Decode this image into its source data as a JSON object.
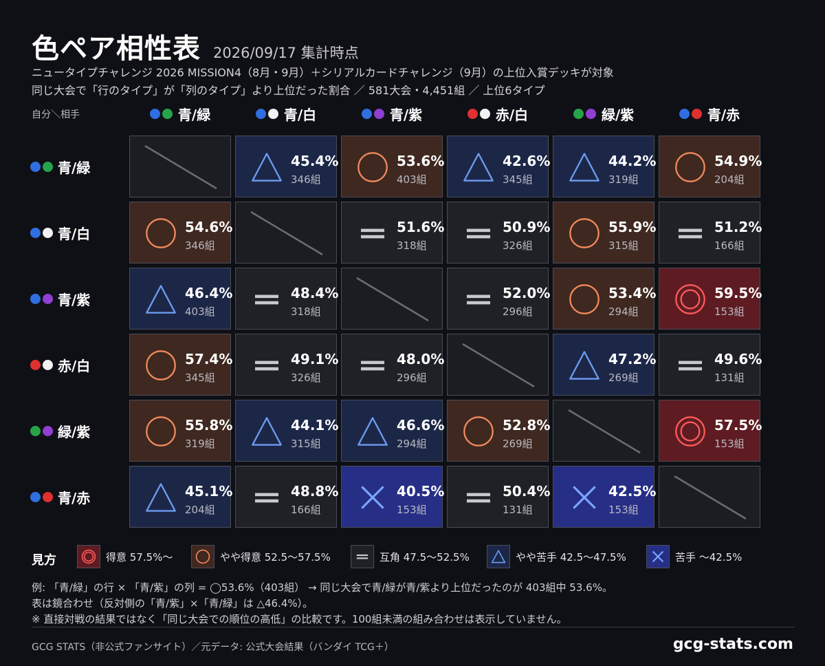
{
  "header": {
    "title": "色ペア相性表",
    "date": "2026/09/17 集計時点",
    "subtitle1": "ニュータイプチャレンジ 2026 MISSION4（8月・9月）＋シリアルカードチャレンジ（9月）の上位入賞デッキが対象",
    "subtitle2": "同じ大会で「行のタイプ」が「列のタイプ」より上位だった割合 ／ 581大会・4,451組 ／ 上位6タイプ",
    "corner": "自分＼相手"
  },
  "colors": {
    "blue": "#2f6fe0",
    "green": "#27a34a",
    "white": "#f2f2f2",
    "purple": "#8f3fd1",
    "red": "#e03030"
  },
  "types": [
    {
      "label": "青/緑",
      "dots": [
        "blue",
        "green"
      ]
    },
    {
      "label": "青/白",
      "dots": [
        "blue",
        "white"
      ]
    },
    {
      "label": "青/紫",
      "dots": [
        "blue",
        "purple"
      ]
    },
    {
      "label": "赤/白",
      "dots": [
        "red",
        "white"
      ]
    },
    {
      "label": "緑/紫",
      "dots": [
        "green",
        "purple"
      ]
    },
    {
      "label": "青/赤",
      "dots": [
        "blue",
        "red"
      ]
    }
  ],
  "matrix": [
    [
      null,
      {
        "pct": "45.4%",
        "count": "346組",
        "rank": "slightly_bad"
      },
      {
        "pct": "53.6%",
        "count": "403組",
        "rank": "slightly_good"
      },
      {
        "pct": "42.6%",
        "count": "345組",
        "rank": "slightly_bad"
      },
      {
        "pct": "44.2%",
        "count": "319組",
        "rank": "slightly_bad"
      },
      {
        "pct": "54.9%",
        "count": "204組",
        "rank": "slightly_good"
      }
    ],
    [
      {
        "pct": "54.6%",
        "count": "346組",
        "rank": "slightly_good"
      },
      null,
      {
        "pct": "51.6%",
        "count": "318組",
        "rank": "even"
      },
      {
        "pct": "50.9%",
        "count": "326組",
        "rank": "even"
      },
      {
        "pct": "55.9%",
        "count": "315組",
        "rank": "slightly_good"
      },
      {
        "pct": "51.2%",
        "count": "166組",
        "rank": "even"
      }
    ],
    [
      {
        "pct": "46.4%",
        "count": "403組",
        "rank": "slightly_bad"
      },
      {
        "pct": "48.4%",
        "count": "318組",
        "rank": "even"
      },
      null,
      {
        "pct": "52.0%",
        "count": "296組",
        "rank": "even"
      },
      {
        "pct": "53.4%",
        "count": "294組",
        "rank": "slightly_good"
      },
      {
        "pct": "59.5%",
        "count": "153組",
        "rank": "good"
      }
    ],
    [
      {
        "pct": "57.4%",
        "count": "345組",
        "rank": "slightly_good"
      },
      {
        "pct": "49.1%",
        "count": "326組",
        "rank": "even"
      },
      {
        "pct": "48.0%",
        "count": "296組",
        "rank": "even"
      },
      null,
      {
        "pct": "47.2%",
        "count": "269組",
        "rank": "slightly_bad"
      },
      {
        "pct": "49.6%",
        "count": "131組",
        "rank": "even"
      }
    ],
    [
      {
        "pct": "55.8%",
        "count": "319組",
        "rank": "slightly_good"
      },
      {
        "pct": "44.1%",
        "count": "315組",
        "rank": "slightly_bad"
      },
      {
        "pct": "46.6%",
        "count": "294組",
        "rank": "slightly_bad"
      },
      {
        "pct": "52.8%",
        "count": "269組",
        "rank": "slightly_good"
      },
      null,
      {
        "pct": "57.5%",
        "count": "153組",
        "rank": "good"
      }
    ],
    [
      {
        "pct": "45.1%",
        "count": "204組",
        "rank": "slightly_bad"
      },
      {
        "pct": "48.8%",
        "count": "166組",
        "rank": "even"
      },
      {
        "pct": "40.5%",
        "count": "153組",
        "rank": "bad"
      },
      {
        "pct": "50.4%",
        "count": "131組",
        "rank": "even"
      },
      {
        "pct": "42.5%",
        "count": "153組",
        "rank": "bad"
      },
      null
    ]
  ],
  "rank_styles": {
    "good": {
      "bg": "#5e1c22",
      "fg": "#ff5a5a",
      "icon": "double-circle-icon"
    },
    "slightly_good": {
      "bg": "#3f2820",
      "fg": "#f08a5d",
      "icon": "circle-icon"
    },
    "even": {
      "bg": "#1f2127",
      "fg": "#c8c9cf",
      "icon": "equals-icon"
    },
    "slightly_bad": {
      "bg": "#1c2748",
      "fg": "#6d9cf0",
      "icon": "triangle-icon"
    },
    "bad": {
      "bg": "#262e86",
      "fg": "#7ba4ff",
      "icon": "cross-icon"
    }
  },
  "legend": {
    "title": "見方",
    "items": [
      {
        "rank": "good",
        "label": "得意 57.5%〜"
      },
      {
        "rank": "slightly_good",
        "label": "やや得意 52.5〜57.5%"
      },
      {
        "rank": "even",
        "label": "互角 47.5〜52.5%"
      },
      {
        "rank": "slightly_bad",
        "label": "やや苦手 42.5〜47.5%"
      },
      {
        "rank": "bad",
        "label": "苦手 〜42.5%"
      }
    ]
  },
  "notes": {
    "line1": "例: 「青/緑」の行 × 「青/紫」の列 = ◯53.6%（403組） → 同じ大会で青/緑が青/紫より上位だったのが 403組中 53.6%。",
    "line2": "表は鏡合わせ（反対側の「青/紫」×「青/緑」は △46.4%）。",
    "line3": "※ 直接対戦の結果ではなく「同じ大会での順位の高低」の比較です。100組未満の組み合わせは表示していません。"
  },
  "footer": {
    "left": "GCG STATS（非公式ファンサイト）／元データ: 公式大会結果（バンダイ TCG＋）",
    "right": "gcg-stats.com"
  }
}
